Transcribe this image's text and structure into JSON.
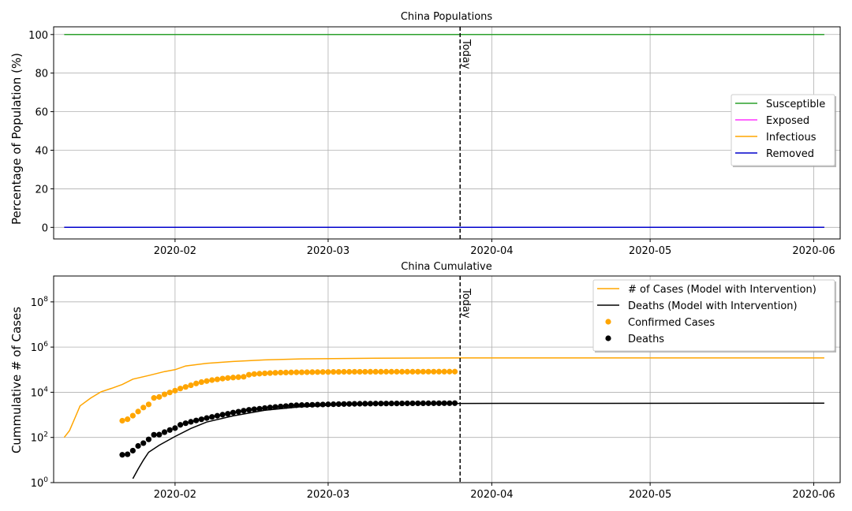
{
  "chart_data": [
    {
      "type": "line",
      "title": "China Populations",
      "ylabel": "Percentage of Population (%)",
      "xlabel": "",
      "ylim": [
        -6,
        104
      ],
      "yticks": [
        "0",
        "20",
        "40",
        "60",
        "80",
        "100"
      ],
      "x_ticks": [
        "2020-02",
        "2020-03",
        "2020-04",
        "2020-05",
        "2020-06"
      ],
      "x_range": [
        "2020-01-09",
        "2020-06-06"
      ],
      "grid": true,
      "legend_placement": "center-right",
      "today_date": "2020-03-26",
      "today_label": "Today",
      "series": [
        {
          "name": "Susceptible",
          "color": "#2ca02c",
          "x": [
            "2020-01-11",
            "2020-06-03"
          ],
          "values": [
            100,
            100
          ]
        },
        {
          "name": "Exposed",
          "color": "#ff33ff",
          "x": [
            "2020-01-11",
            "2020-06-03"
          ],
          "values": [
            0,
            0
          ]
        },
        {
          "name": "Infectious",
          "color": "#ffa500",
          "x": [
            "2020-01-11",
            "2020-06-03"
          ],
          "values": [
            0,
            0
          ]
        },
        {
          "name": "Removed",
          "color": "#0000cc",
          "x": [
            "2020-01-11",
            "2020-06-03"
          ],
          "values": [
            0,
            0
          ]
        }
      ]
    },
    {
      "type": "line",
      "title": "China Cumulative",
      "ylabel": "Cummulative # of Cases",
      "xlabel": "",
      "yscale": "log",
      "ylim": [
        1,
        1400000000.0
      ],
      "yticks": [
        {
          "base": "10",
          "exp": "0"
        },
        {
          "base": "10",
          "exp": "2"
        },
        {
          "base": "10",
          "exp": "4"
        },
        {
          "base": "10",
          "exp": "6"
        },
        {
          "base": "10",
          "exp": "8"
        }
      ],
      "x_ticks": [
        "2020-02",
        "2020-03",
        "2020-04",
        "2020-05",
        "2020-06"
      ],
      "x_range": [
        "2020-01-09",
        "2020-06-06"
      ],
      "grid": true,
      "legend_placement": "top-right",
      "today_date": "2020-03-26",
      "today_label": "Today",
      "series": [
        {
          "name": "# of Cases (Model with Intervention)",
          "style": "line",
          "color": "#ffa500",
          "x": [
            "2020-01-11",
            "2020-01-12",
            "2020-01-13",
            "2020-01-14",
            "2020-01-16",
            "2020-01-18",
            "2020-01-20",
            "2020-01-22",
            "2020-01-24",
            "2020-01-27",
            "2020-01-30",
            "2020-02-01",
            "2020-02-03",
            "2020-02-07",
            "2020-02-12",
            "2020-02-18",
            "2020-02-25",
            "2020-03-10",
            "2020-03-26",
            "2020-06-03"
          ],
          "values": [
            100,
            200,
            700,
            2500,
            5500,
            10500,
            15000,
            22000,
            38000,
            55000,
            82000,
            100000,
            145000,
            190000,
            230000,
            270000,
            300000,
            320000,
            330000,
            330000
          ]
        },
        {
          "name": "Deaths (Model with Intervention)",
          "style": "line",
          "color": "#000000",
          "x": [
            "2020-01-24",
            "2020-01-25",
            "2020-01-26",
            "2020-01-27",
            "2020-01-29",
            "2020-02-01",
            "2020-02-04",
            "2020-02-07",
            "2020-02-12",
            "2020-02-18",
            "2020-02-25",
            "2020-03-05",
            "2020-03-26",
            "2020-06-03"
          ],
          "values": [
            1.5,
            4,
            10,
            22,
            45,
            110,
            250,
            480,
            900,
            1600,
            2300,
            2900,
            3200,
            3300
          ]
        },
        {
          "name": "Confirmed Cases",
          "style": "scatter",
          "color": "#ffa500",
          "x_start": "2020-01-22",
          "values": [
            550,
            640,
            920,
            1400,
            2100,
            2900,
            5600,
            6200,
            8100,
            9800,
            11800,
            14600,
            17200,
            20400,
            24500,
            28200,
            31200,
            34500,
            37200,
            40200,
            42700,
            44700,
            46600,
            48300,
            59800,
            64000,
            66400,
            68600,
            70600,
            72500,
            74200,
            74700,
            75500,
            76300,
            76800,
            77200,
            77800,
            78200,
            78600,
            78900,
            79400,
            79900,
            80200,
            80400,
            80600,
            80700,
            80800,
            80900,
            80900,
            80900,
            81000,
            81000,
            81000,
            81100,
            81200,
            81200,
            81300,
            81400,
            81500,
            81600,
            81700,
            81800,
            81900,
            82000
          ]
        },
        {
          "name": "Deaths",
          "style": "scatter",
          "color": "#000000",
          "x_start": "2020-01-22",
          "values": [
            17,
            18,
            26,
            42,
            56,
            82,
            131,
            133,
            171,
            213,
            259,
            361,
            425,
            491,
            563,
            637,
            722,
            811,
            908,
            1016,
            1113,
            1259,
            1380,
            1523,
            1665,
            1770,
            1868,
            2004,
            2118,
            2236,
            2345,
            2442,
            2592,
            2663,
            2715,
            2744,
            2788,
            2835,
            2870,
            2912,
            2943,
            2981,
            3012,
            3042,
            3070,
            3097,
            3119,
            3136,
            3158,
            3169,
            3176,
            3189,
            3199,
            3213,
            3226,
            3237,
            3245,
            3249,
            3253,
            3259,
            3261,
            3270,
            3277,
            3281
          ]
        }
      ]
    }
  ]
}
